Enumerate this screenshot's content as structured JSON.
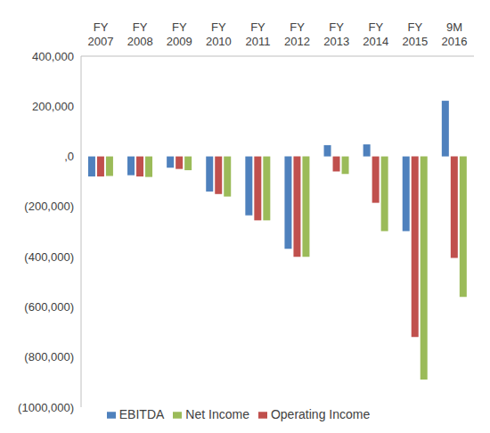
{
  "chart_data": {
    "type": "bar",
    "categories": [
      "FY 2007",
      "FY 2008",
      "FY 2009",
      "FY 2010",
      "FY 2011",
      "FY 2012",
      "FY 2013",
      "FY 2014",
      "FY 2015",
      "9M 2016"
    ],
    "series": [
      {
        "name": "EBITDA",
        "color": "#4f81bd",
        "values": [
          -80000,
          -75000,
          -45000,
          -140000,
          -235000,
          -368000,
          45000,
          48000,
          -298000,
          222000
        ]
      },
      {
        "name": "Operating Income",
        "color": "#c0504d",
        "values": [
          -80000,
          -80000,
          -50000,
          -150000,
          -255000,
          -400000,
          -60000,
          -185000,
          -720000,
          -405000
        ]
      },
      {
        "name": "Net Income",
        "color": "#9bbb59",
        "values": [
          -78000,
          -82000,
          -55000,
          -160000,
          -255000,
          -400000,
          -70000,
          -298000,
          -890000,
          -560000
        ]
      }
    ],
    "ylim": [
      -1000000,
      400000
    ],
    "yticks": [
      {
        "value": 400000,
        "label": "400,000"
      },
      {
        "value": 200000,
        "label": "200,000"
      },
      {
        "value": 0,
        "label": ",0"
      },
      {
        "value": -200000,
        "label": "(200,000)"
      },
      {
        "value": -400000,
        "label": "(400,000)"
      },
      {
        "value": -600000,
        "label": "(600,000)"
      },
      {
        "value": -800000,
        "label": "(800,000)"
      },
      {
        "value": -1000000,
        "label": "(1000,000)"
      }
    ],
    "grid": false,
    "legend": "bottom"
  }
}
